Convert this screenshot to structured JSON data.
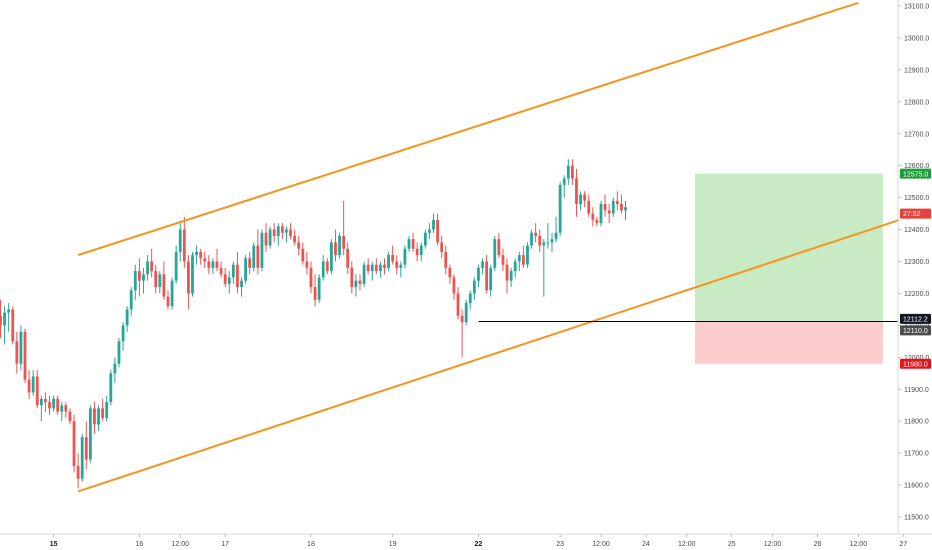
{
  "chart_data": {
    "type": "candlestick",
    "y_axis": {
      "min": 11460,
      "max": 13110,
      "ticks": [
        "11500.0",
        "11600.0",
        "11700.0",
        "11800.0",
        "11900.0",
        "12000.0",
        "12100.0",
        "12200.0",
        "12300.0",
        "12400.0",
        "12500.0",
        "12600.0",
        "12700.0",
        "12800.0",
        "12900.0",
        "13000.0",
        "13100.0"
      ]
    },
    "x_axis": {
      "min_index": 0,
      "max_index": 220,
      "ticks": [
        {
          "label": "15",
          "i": 13,
          "bold": true
        },
        {
          "label": "16",
          "i": 34,
          "bold": false
        },
        {
          "label": "12:00",
          "i": 44,
          "bold": false
        },
        {
          "label": "17",
          "i": 55,
          "bold": false
        },
        {
          "label": "18",
          "i": 76,
          "bold": false
        },
        {
          "label": "19",
          "i": 96,
          "bold": false
        },
        {
          "label": "22",
          "i": 117,
          "bold": true
        },
        {
          "label": "23",
          "i": 137,
          "bold": false
        },
        {
          "label": "12:00",
          "i": 147,
          "bold": false
        },
        {
          "label": "24",
          "i": 158,
          "bold": false
        },
        {
          "label": "12:00",
          "i": 168,
          "bold": false
        },
        {
          "label": "25",
          "i": 179,
          "bold": false
        },
        {
          "label": "12:00",
          "i": 189,
          "bold": false
        },
        {
          "label": "26",
          "i": 200,
          "bold": false
        },
        {
          "label": "12:00",
          "i": 210,
          "bold": false
        },
        {
          "label": "27",
          "i": 221,
          "bold": false
        }
      ]
    },
    "colors": {
      "up": "#26a69a",
      "down": "#ef5350",
      "channel": "#f7931e",
      "target_zone": "#c8ebc4",
      "stop_zone": "#fccbcb",
      "entry_line": "#000000",
      "target_badge": "#1f9d3a",
      "stop_badge": "#e3141c",
      "price_badge": "#e8403a",
      "entry_badge": "#131722",
      "level_badge": "#4b4b4b"
    },
    "channel": {
      "upper": [
        {
          "i": 19,
          "price": 12320
        },
        {
          "i": 210,
          "price": 13110
        }
      ],
      "lower": [
        {
          "i": 19,
          "price": 11580
        },
        {
          "i": 220,
          "price": 12430
        }
      ]
    },
    "position": {
      "start_i": 170,
      "end_i": 216,
      "entry": 12112.2,
      "target": 12575.0,
      "stop": 11980.0
    },
    "price_labels": {
      "target": "12575.0",
      "current": "27:52",
      "entry": "12112.2",
      "level": "12110.0",
      "stop": "11980.0"
    },
    "candles": [
      [
        12130,
        12180,
        12060,
        12100
      ],
      [
        12100,
        12160,
        12040,
        12140
      ],
      [
        12140,
        12170,
        12080,
        12150
      ],
      [
        12150,
        12160,
        12040,
        12050
      ],
      [
        12050,
        12080,
        11950,
        11980
      ],
      [
        11980,
        12100,
        11960,
        12080
      ],
      [
        12080,
        12090,
        11920,
        11930
      ],
      [
        11930,
        11960,
        11870,
        11890
      ],
      [
        11890,
        11960,
        11880,
        11940
      ],
      [
        11940,
        11960,
        11840,
        11850
      ],
      [
        11850,
        11880,
        11800,
        11870
      ],
      [
        11870,
        11890,
        11830,
        11860
      ],
      [
        11860,
        11880,
        11820,
        11840
      ],
      [
        11840,
        11880,
        11830,
        11870
      ],
      [
        11870,
        11880,
        11820,
        11830
      ],
      [
        11830,
        11860,
        11800,
        11850
      ],
      [
        11850,
        11860,
        11810,
        11830
      ],
      [
        11830,
        11840,
        11790,
        11800
      ],
      [
        11800,
        11820,
        11640,
        11660
      ],
      [
        11660,
        11700,
        11590,
        11620
      ],
      [
        11620,
        11760,
        11610,
        11750
      ],
      [
        11750,
        11800,
        11650,
        11680
      ],
      [
        11680,
        11850,
        11670,
        11840
      ],
      [
        11840,
        11860,
        11760,
        11790
      ],
      [
        11790,
        11850,
        11770,
        11840
      ],
      [
        11840,
        11870,
        11800,
        11810
      ],
      [
        11810,
        11880,
        11800,
        11860
      ],
      [
        11860,
        11960,
        11850,
        11950
      ],
      [
        11950,
        12000,
        11920,
        11980
      ],
      [
        11980,
        12060,
        11970,
        12050
      ],
      [
        12050,
        12110,
        12020,
        12100
      ],
      [
        12100,
        12160,
        12080,
        12150
      ],
      [
        12150,
        12220,
        12130,
        12210
      ],
      [
        12210,
        12290,
        12180,
        12270
      ],
      [
        12270,
        12310,
        12190,
        12240
      ],
      [
        12240,
        12280,
        12200,
        12260
      ],
      [
        12260,
        12320,
        12240,
        12300
      ],
      [
        12300,
        12340,
        12250,
        12270
      ],
      [
        12270,
        12290,
        12200,
        12220
      ],
      [
        12220,
        12270,
        12200,
        12260
      ],
      [
        12260,
        12300,
        12180,
        12190
      ],
      [
        12190,
        12210,
        12150,
        12160
      ],
      [
        12160,
        12250,
        12150,
        12240
      ],
      [
        12240,
        12350,
        12230,
        12330
      ],
      [
        12330,
        12420,
        12300,
        12400
      ],
      [
        12400,
        12440,
        12280,
        12300
      ],
      [
        12300,
        12320,
        12150,
        12200
      ],
      [
        12200,
        12330,
        12190,
        12320
      ],
      [
        12320,
        12350,
        12290,
        12330
      ],
      [
        12330,
        12340,
        12290,
        12310
      ],
      [
        12310,
        12330,
        12280,
        12300
      ],
      [
        12300,
        12320,
        12260,
        12280
      ],
      [
        12280,
        12310,
        12260,
        12300
      ],
      [
        12300,
        12340,
        12270,
        12280
      ],
      [
        12280,
        12300,
        12250,
        12260
      ],
      [
        12260,
        12280,
        12220,
        12230
      ],
      [
        12230,
        12270,
        12200,
        12250
      ],
      [
        12250,
        12300,
        12230,
        12290
      ],
      [
        12290,
        12330,
        12200,
        12220
      ],
      [
        12220,
        12250,
        12190,
        12240
      ],
      [
        12240,
        12320,
        12230,
        12310
      ],
      [
        12310,
        12330,
        12260,
        12280
      ],
      [
        12280,
        12360,
        12270,
        12350
      ],
      [
        12350,
        12400,
        12260,
        12280
      ],
      [
        12280,
        12400,
        12270,
        12390
      ],
      [
        12390,
        12420,
        12330,
        12350
      ],
      [
        12350,
        12410,
        12340,
        12400
      ],
      [
        12400,
        12420,
        12360,
        12380
      ],
      [
        12380,
        12420,
        12350,
        12410
      ],
      [
        12410,
        12420,
        12370,
        12390
      ],
      [
        12390,
        12410,
        12360,
        12400
      ],
      [
        12400,
        12420,
        12370,
        12380
      ],
      [
        12380,
        12400,
        12350,
        12360
      ],
      [
        12360,
        12380,
        12320,
        12340
      ],
      [
        12340,
        12360,
        12290,
        12300
      ],
      [
        12300,
        12330,
        12260,
        12280
      ],
      [
        12280,
        12300,
        12200,
        12220
      ],
      [
        12220,
        12260,
        12160,
        12180
      ],
      [
        12180,
        12260,
        12170,
        12250
      ],
      [
        12250,
        12320,
        12240,
        12300
      ],
      [
        12300,
        12310,
        12260,
        12270
      ],
      [
        12270,
        12370,
        12260,
        12360
      ],
      [
        12360,
        12400,
        12300,
        12320
      ],
      [
        12320,
        12390,
        12310,
        12380
      ],
      [
        12380,
        12490,
        12320,
        12340
      ],
      [
        12340,
        12360,
        12260,
        12280
      ],
      [
        12280,
        12300,
        12200,
        12220
      ],
      [
        12220,
        12260,
        12190,
        12240
      ],
      [
        12240,
        12260,
        12210,
        12230
      ],
      [
        12230,
        12300,
        12220,
        12290
      ],
      [
        12290,
        12310,
        12260,
        12270
      ],
      [
        12270,
        12300,
        12240,
        12290
      ],
      [
        12290,
        12310,
        12260,
        12270
      ],
      [
        12270,
        12300,
        12250,
        12290
      ],
      [
        12290,
        12310,
        12260,
        12280
      ],
      [
        12280,
        12330,
        12270,
        12320
      ],
      [
        12320,
        12350,
        12290,
        12300
      ],
      [
        12300,
        12320,
        12260,
        12280
      ],
      [
        12280,
        12300,
        12250,
        12290
      ],
      [
        12290,
        12350,
        12280,
        12340
      ],
      [
        12340,
        12380,
        12330,
        12370
      ],
      [
        12370,
        12390,
        12330,
        12340
      ],
      [
        12340,
        12360,
        12300,
        12320
      ],
      [
        12320,
        12360,
        12300,
        12350
      ],
      [
        12350,
        12400,
        12340,
        12390
      ],
      [
        12390,
        12420,
        12370,
        12400
      ],
      [
        12400,
        12450,
        12390,
        12430
      ],
      [
        12430,
        12450,
        12350,
        12360
      ],
      [
        12360,
        12380,
        12310,
        12330
      ],
      [
        12330,
        12350,
        12260,
        12280
      ],
      [
        12280,
        12290,
        12230,
        12250
      ],
      [
        12250,
        12260,
        12180,
        12200
      ],
      [
        12200,
        12220,
        12120,
        12130
      ],
      [
        12130,
        12150,
        12000,
        12110
      ],
      [
        12110,
        12180,
        12100,
        12170
      ],
      [
        12170,
        12210,
        12150,
        12200
      ],
      [
        12200,
        12250,
        12180,
        12240
      ],
      [
        12240,
        12290,
        12220,
        12280
      ],
      [
        12280,
        12310,
        12260,
        12300
      ],
      [
        12300,
        12320,
        12200,
        12210
      ],
      [
        12210,
        12290,
        12190,
        12280
      ],
      [
        12280,
        12380,
        12270,
        12370
      ],
      [
        12370,
        12390,
        12310,
        12320
      ],
      [
        12320,
        12340,
        12270,
        12290
      ],
      [
        12290,
        12310,
        12200,
        12240
      ],
      [
        12240,
        12280,
        12220,
        12270
      ],
      [
        12270,
        12310,
        12250,
        12300
      ],
      [
        12300,
        12330,
        12270,
        12320
      ],
      [
        12320,
        12350,
        12280,
        12290
      ],
      [
        12290,
        12360,
        12280,
        12350
      ],
      [
        12350,
        12400,
        12340,
        12390
      ],
      [
        12390,
        12420,
        12360,
        12380
      ],
      [
        12380,
        12400,
        12330,
        12350
      ],
      [
        12350,
        12370,
        12190,
        12360
      ],
      [
        12360,
        12420,
        12340,
        12360
      ],
      [
        12360,
        12390,
        12330,
        12370
      ],
      [
        12370,
        12440,
        12360,
        12390
      ],
      [
        12390,
        12550,
        12380,
        12540
      ],
      [
        12540,
        12570,
        12500,
        12560
      ],
      [
        12560,
        12620,
        12540,
        12600
      ],
      [
        12600,
        12620,
        12540,
        12560
      ],
      [
        12560,
        12590,
        12440,
        12480
      ],
      [
        12480,
        12520,
        12460,
        12510
      ],
      [
        12510,
        12520,
        12470,
        12490
      ],
      [
        12490,
        12510,
        12440,
        12450
      ],
      [
        12450,
        12470,
        12410,
        12430
      ],
      [
        12430,
        12440,
        12410,
        12420
      ],
      [
        12420,
        12490,
        12410,
        12480
      ],
      [
        12480,
        12510,
        12440,
        12460
      ],
      [
        12460,
        12480,
        12420,
        12450
      ],
      [
        12450,
        12500,
        12440,
        12490
      ],
      [
        12490,
        12520,
        12460,
        12480
      ],
      [
        12480,
        12510,
        12450,
        12460
      ],
      [
        12460,
        12490,
        12430,
        12470
      ]
    ]
  }
}
